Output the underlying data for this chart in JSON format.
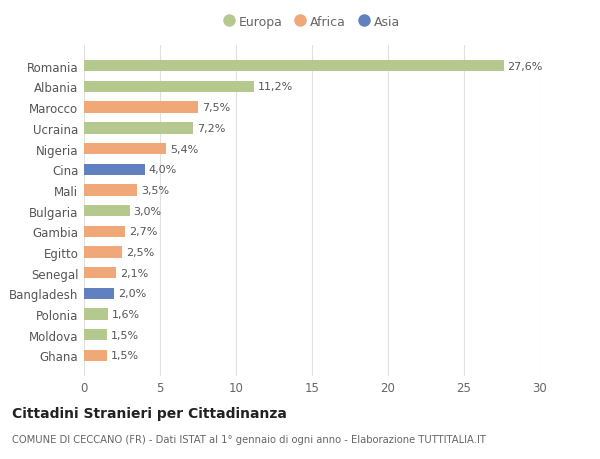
{
  "categories": [
    "Romania",
    "Albania",
    "Marocco",
    "Ucraina",
    "Nigeria",
    "Cina",
    "Mali",
    "Bulgaria",
    "Gambia",
    "Egitto",
    "Senegal",
    "Bangladesh",
    "Polonia",
    "Moldova",
    "Ghana"
  ],
  "values": [
    27.6,
    11.2,
    7.5,
    7.2,
    5.4,
    4.0,
    3.5,
    3.0,
    2.7,
    2.5,
    2.1,
    2.0,
    1.6,
    1.5,
    1.5
  ],
  "labels": [
    "27,6%",
    "11,2%",
    "7,5%",
    "7,2%",
    "5,4%",
    "4,0%",
    "3,5%",
    "3,0%",
    "2,7%",
    "2,5%",
    "2,1%",
    "2,0%",
    "1,6%",
    "1,5%",
    "1,5%"
  ],
  "continent": [
    "Europa",
    "Europa",
    "Africa",
    "Europa",
    "Africa",
    "Asia",
    "Africa",
    "Europa",
    "Africa",
    "Africa",
    "Africa",
    "Asia",
    "Europa",
    "Europa",
    "Africa"
  ],
  "colors": {
    "Europa": "#b5c98e",
    "Africa": "#f0a878",
    "Asia": "#6080c0"
  },
  "legend_labels": [
    "Europa",
    "Africa",
    "Asia"
  ],
  "title": "Cittadini Stranieri per Cittadinanza",
  "subtitle": "COMUNE DI CECCANO (FR) - Dati ISTAT al 1° gennaio di ogni anno - Elaborazione TUTTITALIA.IT",
  "xlim": [
    0,
    30
  ],
  "xticks": [
    0,
    5,
    10,
    15,
    20,
    25,
    30
  ],
  "background_color": "#ffffff",
  "grid_color": "#e0e0e0"
}
